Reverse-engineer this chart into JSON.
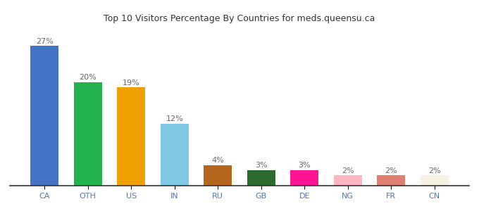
{
  "categories": [
    "CA",
    "OTH",
    "US",
    "IN",
    "RU",
    "GB",
    "DE",
    "NG",
    "FR",
    "CN"
  ],
  "values": [
    27,
    20,
    19,
    12,
    4,
    3,
    3,
    2,
    2,
    2
  ],
  "labels": [
    "27%",
    "20%",
    "19%",
    "12%",
    "4%",
    "3%",
    "3%",
    "2%",
    "2%",
    "2%"
  ],
  "colors": [
    "#4472c4",
    "#22b14c",
    "#f0a000",
    "#7ec8e3",
    "#b5651d",
    "#2d6a2d",
    "#ff1493",
    "#ffb6c1",
    "#e08070",
    "#f5f0e0"
  ],
  "title": "Top 10 Visitors Percentage By Countries for meds.queensu.ca",
  "title_fontsize": 9,
  "bar_label_fontsize": 8,
  "xtick_fontsize": 8,
  "ylim": [
    0,
    31
  ],
  "background_color": "#ffffff"
}
